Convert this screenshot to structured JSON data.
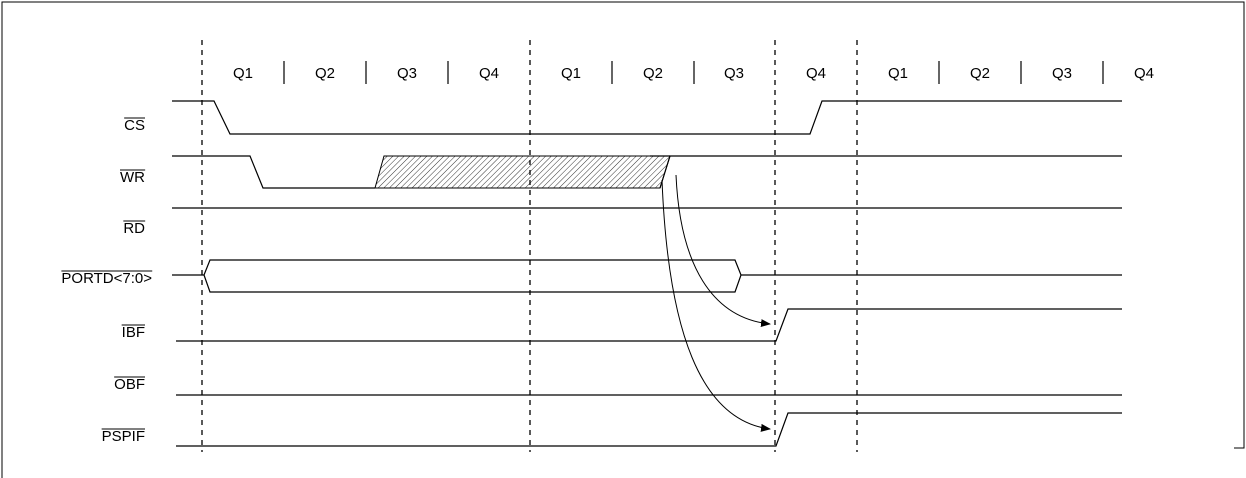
{
  "quarter_labels": [
    "Q1",
    "Q2",
    "Q3",
    "Q4",
    "Q1",
    "Q2",
    "Q3",
    "Q4",
    "Q1",
    "Q2",
    "Q3",
    "Q4"
  ],
  "signals": [
    {
      "id": "cs",
      "label": "CS",
      "active_low": true
    },
    {
      "id": "wr",
      "label": "WR",
      "active_low": true
    },
    {
      "id": "rd",
      "label": "RD",
      "active_low": true
    },
    {
      "id": "portd",
      "label": "PORTD<7:0>",
      "active_low": true
    },
    {
      "id": "ibf",
      "label": "IBF",
      "active_low": true
    },
    {
      "id": "obf",
      "label": "OBF",
      "active_low": true
    },
    {
      "id": "pspif",
      "label": "PSPIF",
      "active_low": true
    }
  ],
  "colors": {
    "line": "#000000",
    "background": "#ffffff"
  }
}
